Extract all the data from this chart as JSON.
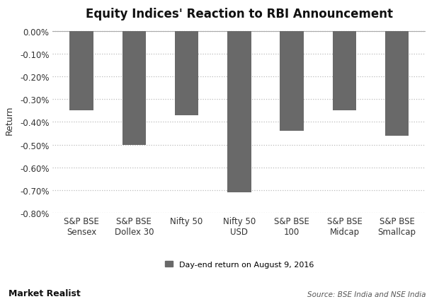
{
  "title": "Equity Indices' Reaction to RBI Announcement",
  "categories": [
    "S&P BSE\nSensex",
    "S&P BSE\nDollex 30",
    "Nifty 50",
    "Nifty 50\nUSD",
    "S&P BSE\n100",
    "S&P BSE\nMidcap",
    "S&P BSE\nSmallcap"
  ],
  "values": [
    -0.35,
    -0.5,
    -0.37,
    -0.71,
    -0.44,
    -0.35,
    -0.46
  ],
  "bar_color": "#696969",
  "ylabel": "Return",
  "ylim": [
    -0.8,
    0.02
  ],
  "yticks": [
    0.0,
    -0.1,
    -0.2,
    -0.3,
    -0.4,
    -0.5,
    -0.6,
    -0.7,
    -0.8
  ],
  "legend_label": "Day-end return on August 9, 2016",
  "source_text": "Source: BSE India and NSE India",
  "watermark": "Market Realist",
  "background_color": "#ffffff",
  "grid_color": "#bbbbbb",
  "title_fontsize": 12,
  "axis_fontsize": 9,
  "tick_fontsize": 8.5
}
